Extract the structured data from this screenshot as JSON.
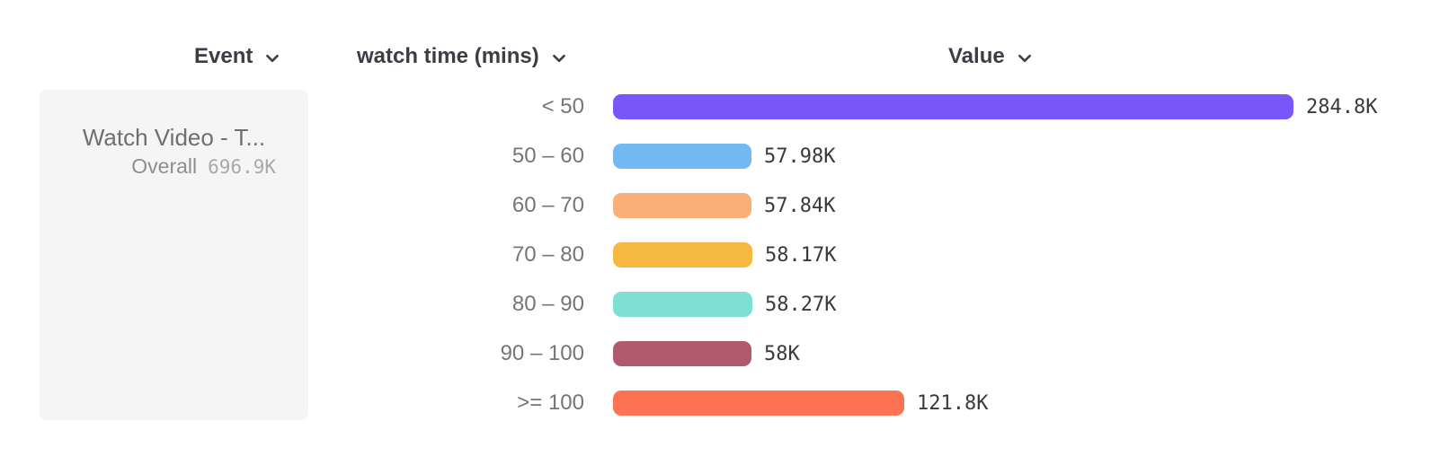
{
  "header": {
    "columns": [
      {
        "id": "event",
        "label": "Event"
      },
      {
        "id": "breakdown",
        "label": "watch time (mins)"
      },
      {
        "id": "value",
        "label": "Value"
      }
    ]
  },
  "event_card": {
    "title": "Watch Video - T...",
    "overall_label": "Overall",
    "overall_value": "696.9K"
  },
  "chart_data": {
    "type": "bar",
    "orientation": "horizontal",
    "title": "",
    "xlabel": "Value",
    "ylabel": "watch time (mins)",
    "categories": [
      "< 50",
      "50 – 60",
      "60 – 70",
      "70 – 80",
      "80 – 90",
      "90 – 100",
      ">= 100"
    ],
    "values": [
      284800,
      57980,
      57840,
      58170,
      58270,
      58000,
      121800
    ],
    "value_labels": [
      "284.8K",
      "57.98K",
      "57.84K",
      "58.17K",
      "58.27K",
      "58K",
      "121.8K"
    ],
    "bar_colors": [
      "#7857F8",
      "#73B9F3",
      "#FAAE78",
      "#F6B840",
      "#7EE0D3",
      "#B15A6C",
      "#FD7354"
    ],
    "overall_value": 696900,
    "xlim": [
      0,
      300000
    ],
    "grid": false,
    "legend": false
  }
}
